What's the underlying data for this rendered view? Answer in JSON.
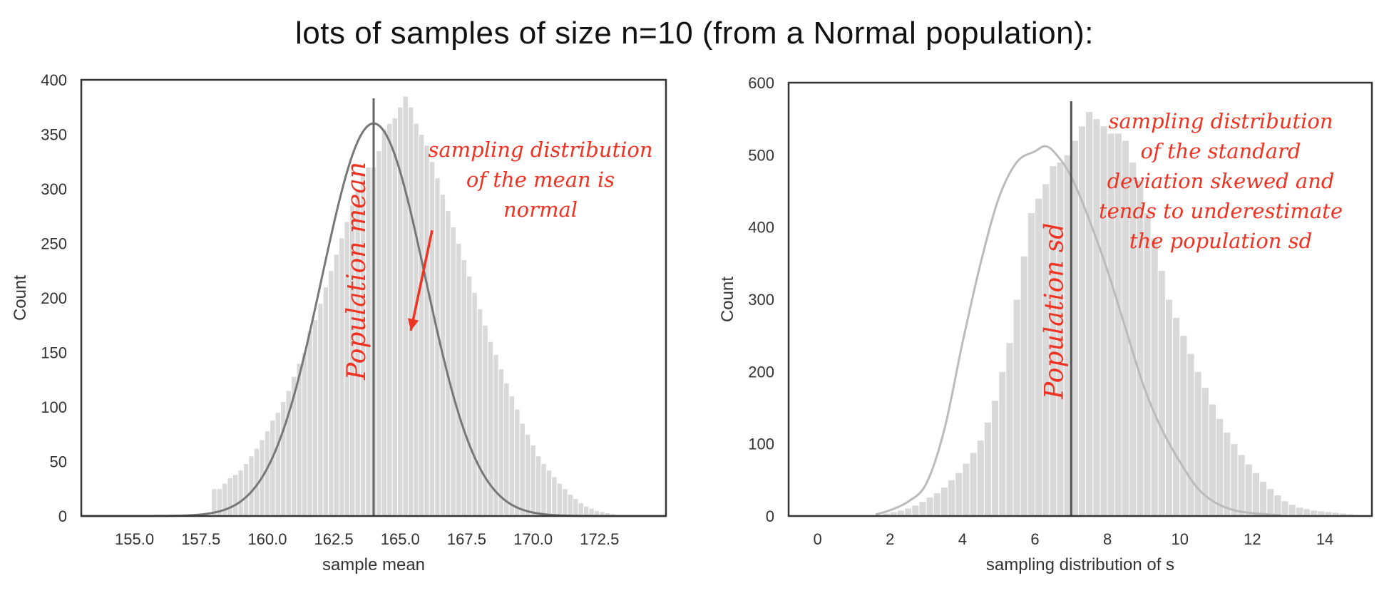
{
  "title": "lots of samples of size n=10 (from a Normal population):",
  "chart_data": [
    {
      "type": "bar",
      "subtype": "histogram_with_density",
      "xlabel": "sample mean",
      "ylabel": "Count",
      "xlim": [
        153.0,
        175.0
      ],
      "ylim": [
        0,
        400
      ],
      "xticks": [
        155.0,
        157.5,
        160.0,
        162.5,
        165.0,
        167.5,
        170.0,
        172.5
      ],
      "yticks": [
        0,
        50,
        100,
        150,
        200,
        250,
        300,
        350,
        400
      ],
      "bin_edges_start": 157.9,
      "bin_width": 0.2,
      "counts": [
        25,
        25,
        30,
        35,
        38,
        42,
        48,
        55,
        62,
        70,
        78,
        88,
        95,
        105,
        115,
        128,
        140,
        150,
        170,
        180,
        195,
        210,
        225,
        240,
        255,
        270,
        285,
        300,
        315,
        320,
        320,
        335,
        355,
        360,
        365,
        375,
        385,
        375,
        360,
        350,
        340,
        325,
        310,
        295,
        280,
        265,
        250,
        235,
        220,
        205,
        190,
        175,
        160,
        148,
        135,
        122,
        110,
        98,
        85,
        75,
        65,
        55,
        48,
        42,
        36,
        30,
        25,
        20,
        16,
        12,
        9,
        7,
        5,
        4,
        3,
        2
      ],
      "density": {
        "mean": 164.0,
        "sd": 1.95,
        "peak": 360,
        "color": "#777777"
      },
      "vline": {
        "x": 164.0,
        "label": "Population mean",
        "color": "#666666"
      },
      "annotation": {
        "lines": [
          "sampling distribution",
          "of the mean is",
          "normal"
        ],
        "arrow": {
          "from": [
            166.2,
            262
          ],
          "to": [
            165.4,
            170
          ]
        },
        "color": "#ee3322"
      },
      "bar_color": "#d9d9d9"
    },
    {
      "type": "bar",
      "subtype": "histogram_with_density",
      "xlabel": "sampling distribution of s",
      "ylabel": "Count",
      "xlim": [
        -0.8,
        15.3
      ],
      "ylim": [
        0,
        600
      ],
      "xticks": [
        0,
        2,
        4,
        6,
        8,
        10,
        12,
        14
      ],
      "yticks": [
        0,
        100,
        200,
        300,
        400,
        500,
        600
      ],
      "bin_edges_start": 1.6,
      "bin_width": 0.2,
      "counts": [
        2,
        4,
        6,
        8,
        11,
        15,
        20,
        26,
        32,
        40,
        50,
        60,
        73,
        88,
        105,
        130,
        160,
        200,
        240,
        300,
        360,
        420,
        440,
        460,
        485,
        490,
        500,
        520,
        540,
        560,
        550,
        540,
        530,
        530,
        520,
        490,
        465,
        420,
        385,
        340,
        300,
        275,
        250,
        225,
        200,
        178,
        155,
        135,
        116,
        100,
        85,
        72,
        60,
        48,
        38,
        29,
        21,
        16,
        12,
        10,
        8,
        7,
        6,
        5,
        4,
        3,
        2,
        2,
        1,
        1,
        1
      ],
      "density": {
        "x": [
          1.6,
          2.0,
          2.5,
          3.0,
          3.5,
          4.0,
          4.5,
          5.0,
          5.5,
          6.0,
          6.3,
          6.6,
          7.0,
          7.5,
          8.0,
          8.5,
          9.0,
          9.5,
          10.0,
          10.5,
          11.0,
          11.5,
          12.0,
          12.8
        ],
        "y": [
          2,
          8,
          20,
          45,
          120,
          240,
          350,
          440,
          490,
          505,
          512,
          500,
          470,
          410,
          340,
          260,
          180,
          120,
          75,
          38,
          18,
          8,
          4,
          1
        ],
        "color": "#bbbbbb"
      },
      "vline": {
        "x": 7.0,
        "label": "Population sd",
        "color": "#555555"
      },
      "annotation": {
        "lines": [
          "sampling distribution",
          "of the standard",
          "deviation skewed and",
          "tends to underestimate",
          "the population sd"
        ],
        "color": "#ee3322"
      },
      "bar_color": "#d9d9d9"
    }
  ]
}
